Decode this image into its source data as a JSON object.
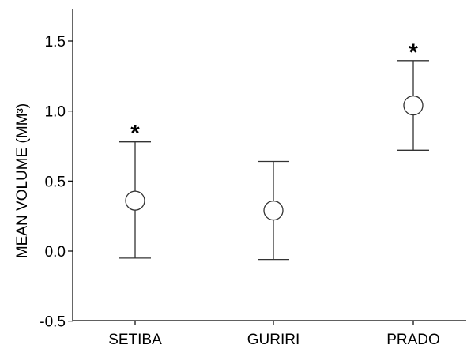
{
  "chart_data": {
    "type": "scatter",
    "title": "",
    "xlabel": "",
    "ylabel": "MEAN VOLUME (MM³)",
    "categories": [
      "SETIBA",
      "GURIRI",
      "PRADO"
    ],
    "series": [
      {
        "mean": [
          0.36,
          0.29,
          1.04
        ],
        "lower": [
          -0.05,
          -0.06,
          0.72
        ],
        "upper": [
          0.78,
          0.64,
          1.36
        ],
        "significance": [
          "*",
          "",
          "*"
        ]
      }
    ],
    "ylim": [
      -0.5,
      1.5
    ],
    "yticks": [
      "-0.5",
      "0.0",
      "0.5",
      "1.0",
      "1.5"
    ],
    "ytick_values": [
      -0.5,
      0.0,
      0.5,
      1.0,
      1.5
    ],
    "grid": false,
    "colors": {
      "axis": "#000000",
      "marker": "#333333"
    }
  }
}
